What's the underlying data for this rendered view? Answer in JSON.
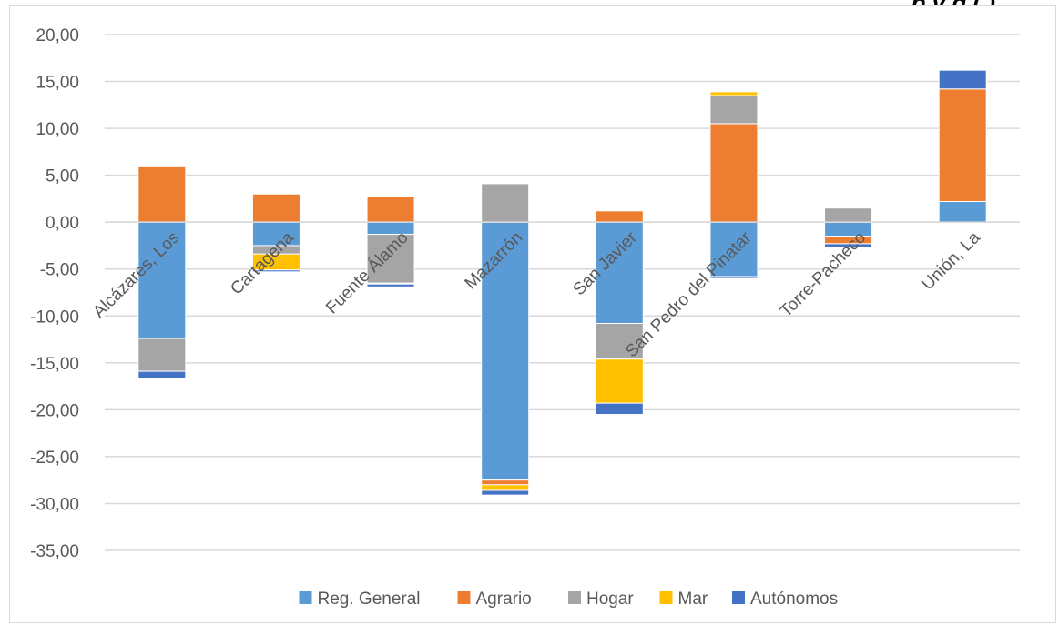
{
  "header": {
    "title_fragment": "p                                                              y    g     ( )"
  },
  "chart_data": {
    "type": "bar",
    "stacked": true,
    "categories": [
      "Alcázares, Los",
      "Cartagena",
      "Fuente Álamo",
      "Mazarrón",
      "San Javier",
      "San Pedro del Pinatar",
      "Torre-Pacheco",
      "Unión, La"
    ],
    "ylim": [
      -35,
      20
    ],
    "yticks": [
      20,
      15,
      10,
      5,
      0,
      -5,
      -10,
      -15,
      -20,
      -25,
      -30,
      -35
    ],
    "ytick_labels": [
      "20,00",
      "15,00",
      "10,00",
      "5,00",
      "0,00",
      "-5,00",
      "-10,00",
      "-15,00",
      "-20,00",
      "-25,00",
      "-30,00",
      "-35,00"
    ],
    "grid": true,
    "legend_position": "bottom",
    "series": [
      {
        "name": "Reg. General",
        "color": "#5b9bd5",
        "values": [
          -12.4,
          -2.5,
          -1.3,
          -27.5,
          -10.8,
          -5.8,
          -1.5,
          2.2
        ]
      },
      {
        "name": "Agrario",
        "color": "#ed7d31",
        "values": [
          5.9,
          3.0,
          2.7,
          -0.5,
          1.2,
          10.5,
          -0.8,
          12.0
        ]
      },
      {
        "name": "Hogar",
        "color": "#a5a5a5",
        "values": [
          -3.5,
          -0.9,
          -5.2,
          4.1,
          -3.8,
          3.0,
          1.5,
          0.0
        ]
      },
      {
        "name": "Mar",
        "color": "#ffc000",
        "values": [
          0.0,
          -1.7,
          -0.1,
          -0.6,
          -4.7,
          0.4,
          0.0,
          0.0
        ]
      },
      {
        "name": "Autónomos",
        "color": "#4472c4",
        "values": [
          -0.8,
          -0.2,
          -0.3,
          -0.5,
          -1.2,
          -0.2,
          -0.4,
          2.0
        ]
      }
    ]
  }
}
